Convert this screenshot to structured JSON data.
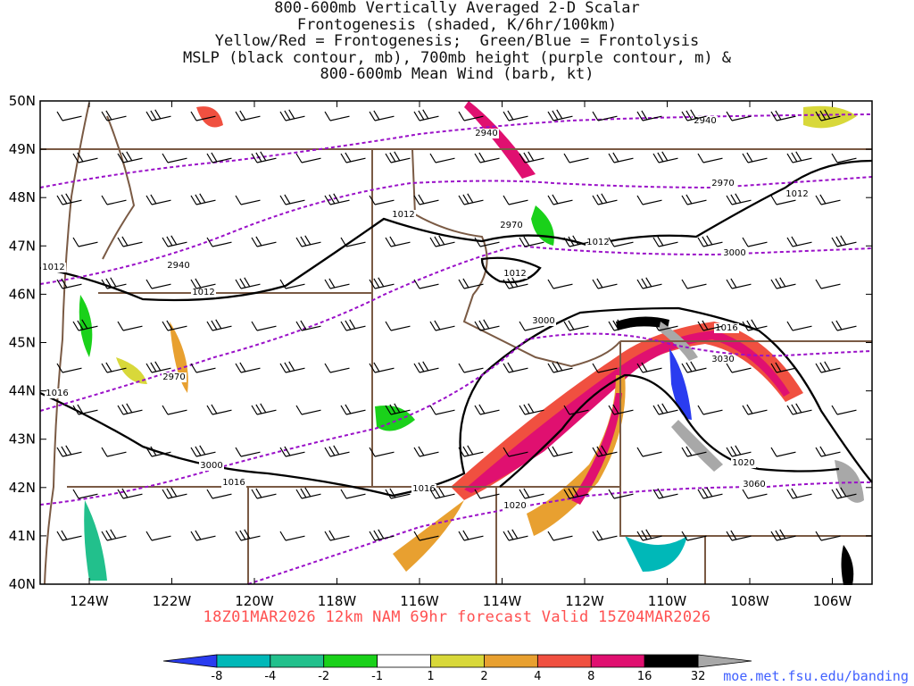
{
  "title_lines": [
    "800-600mb Vertically Averaged 2-D Scalar",
    "Frontogenesis (shaded, K/6hr/100km)",
    "Yellow/Red = Frontogenesis;  Green/Blue = Frontolysis",
    "MSLP (black contour, mb), 700mb height (purple contour, m) &",
    "800-600mb Mean Wind (barb, kt)"
  ],
  "lat_labels": [
    "50N",
    "49N",
    "48N",
    "47N",
    "46N",
    "45N",
    "44N",
    "43N",
    "42N",
    "41N",
    "40N"
  ],
  "lon_labels": [
    "124W",
    "122W",
    "120W",
    "118W",
    "116W",
    "114W",
    "112W",
    "110W",
    "108W",
    "106W"
  ],
  "run_info": "18Z01MAR2026 12km NAM 69hr forecast Valid 15Z04MAR2026",
  "credit": "moe.met.fsu.edu/banding",
  "colorbar": {
    "ticks": [
      "-8",
      "-4",
      "-2",
      "-1",
      "1",
      "2",
      "4",
      "8",
      "16",
      "32"
    ],
    "colors": [
      "#2a3cf0",
      "#00b8b8",
      "#22c08c",
      "#1ad11a",
      "#ffffff",
      "#d8d83a",
      "#e8a030",
      "#f05040",
      "#e01070",
      "#000000",
      "#a8a8a8"
    ]
  },
  "mslp_labels": [
    "1012",
    "1012",
    "1012",
    "1012",
    "1012",
    "1012",
    "1016",
    "1016",
    "1016",
    "1016",
    "1020",
    "1020"
  ],
  "height_labels": [
    "2940",
    "2940",
    "2940",
    "2970",
    "2970",
    "2970",
    "3000",
    "3000",
    "3000",
    "3030",
    "3060"
  ],
  "colors": {
    "mslp": "#000000",
    "height": "#9a10c8",
    "border": "#7a5a44",
    "subtitle": "#ff5050",
    "credit": "#4060ff"
  }
}
